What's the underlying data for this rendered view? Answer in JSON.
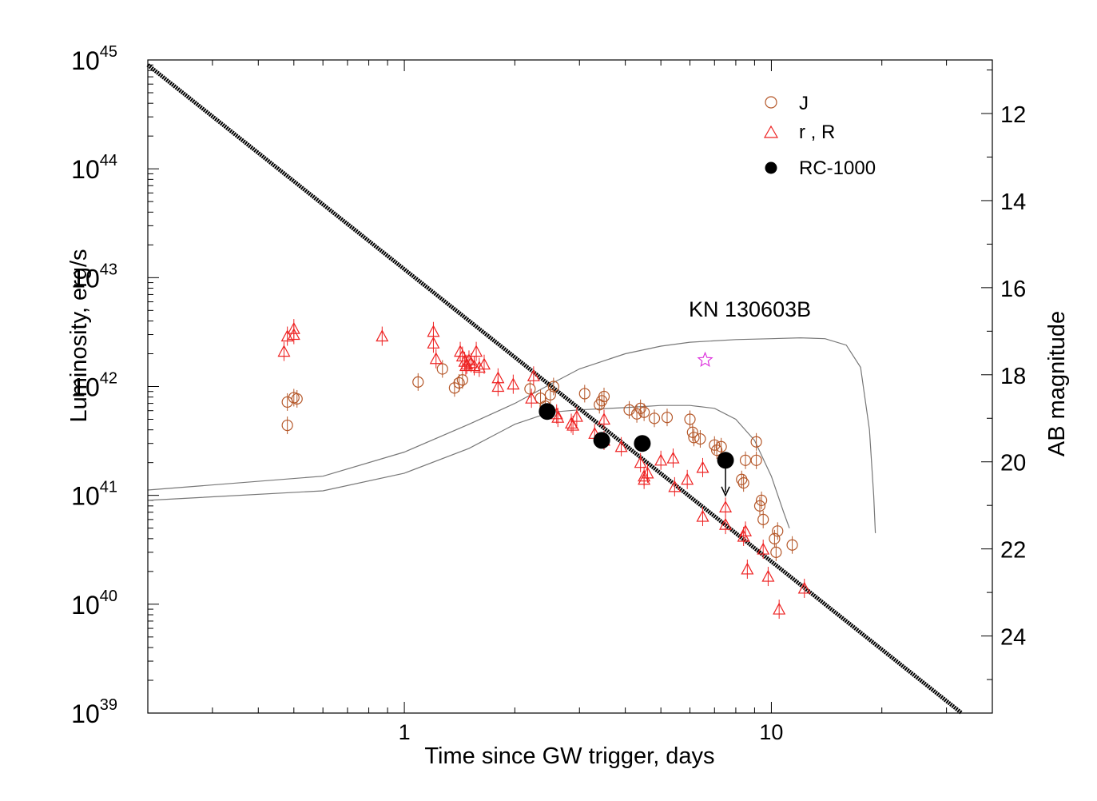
{
  "chart_data": {
    "type": "scatter",
    "xlabel": "Time since GW trigger, days",
    "ylabel": "Luminosity, erg/s",
    "y2label": "AB magnitude",
    "xscale": "log",
    "yscale": "log",
    "xlim": [
      0.2,
      40
    ],
    "ylim": [
      1e+39,
      1e+45
    ],
    "x_tick_labels": [
      {
        "value": 1,
        "label": "1"
      },
      {
        "value": 10,
        "label": "10"
      }
    ],
    "y_tick_labels": [
      {
        "value": 1e+39,
        "base": "10",
        "exp": "39"
      },
      {
        "value": 1e+40,
        "base": "10",
        "exp": "40"
      },
      {
        "value": 1e+41,
        "base": "10",
        "exp": "41"
      },
      {
        "value": 1e+42,
        "base": "10",
        "exp": "42"
      },
      {
        "value": 1e+43,
        "base": "10",
        "exp": "43"
      },
      {
        "value": 1e+44,
        "base": "10",
        "exp": "44"
      },
      {
        "value": 1e+45,
        "base": "10",
        "exp": "45"
      }
    ],
    "mag_axis": {
      "ref_lum": 1e+42,
      "ref_mag": 18.27,
      "ticks_major": [
        12,
        14,
        16,
        18,
        20,
        22,
        24
      ],
      "ticks_minor": [
        11,
        13,
        15,
        17,
        19,
        21,
        23,
        25
      ]
    },
    "annotation": "KN 130603B",
    "legend": [
      {
        "label": "J",
        "marker": "circle",
        "color": "#b5582a"
      },
      {
        "label": "r , R",
        "marker": "triangle",
        "color": "#ee2222"
      },
      {
        "label": "RC-1000",
        "marker": "filled-circle",
        "color": "#000000"
      }
    ],
    "colors": {
      "J": "#b5582a",
      "R": "#ee2222",
      "RC": "#000000",
      "star": "#dd33dd",
      "models": "#777777",
      "powerlaw": "#000000"
    },
    "series": [
      {
        "name": "J",
        "points": [
          [
            0.48,
            4.4e+41
          ],
          [
            0.48,
            7.2e+41
          ],
          [
            0.5,
            7.9e+41
          ],
          [
            0.51,
            7.7e+41
          ],
          [
            1.09,
            1.1e+42
          ],
          [
            1.27,
            1.45e+42
          ],
          [
            1.37,
            9.7e+41
          ],
          [
            1.41,
            1.08e+42
          ],
          [
            1.44,
            1.15e+42
          ],
          [
            2.2,
            9.5e+41
          ],
          [
            2.35,
            7.8e+41
          ],
          [
            2.42,
            6.6e+41
          ],
          [
            2.5,
            8.4e+41
          ],
          [
            2.55,
            1e+42
          ],
          [
            3.1,
            8.6e+41
          ],
          [
            3.4,
            6.8e+41
          ],
          [
            3.45,
            7.4e+41
          ],
          [
            3.5,
            8.1e+41
          ],
          [
            4.1,
            6.1e+41
          ],
          [
            4.3,
            5.6e+41
          ],
          [
            4.4,
            6.3e+41
          ],
          [
            4.5,
            5.8e+41
          ],
          [
            4.8,
            5.1e+41
          ],
          [
            5.2,
            5.2e+41
          ],
          [
            6.0,
            5e+41
          ],
          [
            6.1,
            3.8e+41
          ],
          [
            6.15,
            3.4e+41
          ],
          [
            6.4,
            3.3e+41
          ],
          [
            7.0,
            2.9e+41
          ],
          [
            7.1,
            2.6e+41
          ],
          [
            7.3,
            2.8e+41
          ],
          [
            8.3,
            1.4e+41
          ],
          [
            8.4,
            1.3e+41
          ],
          [
            8.5,
            2.1e+41
          ],
          [
            9.1,
            3.1e+41
          ],
          [
            9.1,
            2.1e+41
          ],
          [
            9.3,
            8e+40
          ],
          [
            9.4,
            9e+40
          ],
          [
            9.5,
            6e+40
          ],
          [
            10.2,
            4e+40
          ],
          [
            10.3,
            3e+40
          ],
          [
            10.4,
            4.7e+40
          ],
          [
            11.4,
            3.5e+40
          ]
        ]
      },
      {
        "name": "r , R",
        "points": [
          [
            0.47,
            2.1e+42
          ],
          [
            0.48,
            2.9e+42
          ],
          [
            0.5,
            3.4e+42
          ],
          [
            0.5,
            3e+42
          ],
          [
            0.87,
            2.9e+42
          ],
          [
            1.2,
            3.2e+42
          ],
          [
            1.2,
            2.5e+42
          ],
          [
            1.22,
            1.8e+42
          ],
          [
            1.42,
            2.1e+42
          ],
          [
            1.44,
            1.9e+42
          ],
          [
            1.46,
            1.7e+42
          ],
          [
            1.47,
            1.55e+42
          ],
          [
            1.48,
            1.6e+42
          ],
          [
            1.5,
            1.75e+42
          ],
          [
            1.52,
            1.65e+42
          ],
          [
            1.55,
            1.55e+42
          ],
          [
            1.57,
            2.1e+42
          ],
          [
            1.6,
            1.5e+42
          ],
          [
            1.65,
            1.6e+42
          ],
          [
            1.8,
            1.2e+42
          ],
          [
            1.8,
            1e+42
          ],
          [
            1.98,
            1.05e+42
          ],
          [
            2.22,
            7.8e+41
          ],
          [
            2.25,
            1.25e+42
          ],
          [
            2.6,
            5.6e+41
          ],
          [
            2.62,
            5.2e+41
          ],
          [
            2.85,
            4.6e+41
          ],
          [
            2.88,
            4.4e+41
          ],
          [
            2.95,
            5.3e+41
          ],
          [
            3.3,
            3.7e+41
          ],
          [
            3.5,
            3.2e+41
          ],
          [
            3.5,
            5e+41
          ],
          [
            3.9,
            2.8e+41
          ],
          [
            4.4,
            2e+41
          ],
          [
            4.5,
            1.5e+41
          ],
          [
            4.5,
            1.4e+41
          ],
          [
            4.6,
            1.6e+41
          ],
          [
            5.0,
            2.1e+41
          ],
          [
            5.4,
            2.2e+41
          ],
          [
            5.45,
            1.2e+41
          ],
          [
            5.9,
            1.4e+41
          ],
          [
            6.5,
            6.4e+40
          ],
          [
            6.5,
            1.8e+41
          ],
          [
            7.5,
            5.4e+40
          ],
          [
            7.5,
            7.8e+40
          ],
          [
            8.4,
            4.2e+40
          ],
          [
            8.5,
            4.7e+40
          ],
          [
            8.6,
            2.1e+40
          ],
          [
            9.5,
            3.2e+40
          ],
          [
            9.8,
            1.8e+40
          ],
          [
            10.5,
            9e+39
          ],
          [
            12.3,
            1.4e+40
          ]
        ]
      },
      {
        "name": "RC-1000",
        "points": [
          [
            2.45,
            5.9e+41
          ],
          [
            3.45,
            3.2e+41
          ],
          [
            4.45,
            3e+41
          ],
          [
            7.5,
            2.1e+41
          ]
        ],
        "upper_limit": [
          false,
          false,
          false,
          true
        ]
      }
    ],
    "star_point": [
      6.6,
      1.75e+42
    ],
    "powerlaw_line": [
      [
        0.2,
        9e+44
      ],
      [
        33,
        1e+39
      ]
    ],
    "model_curves": [
      [
        [
          0.2,
          1.12e+41
        ],
        [
          0.6,
          1.5e+41
        ],
        [
          1.0,
          2.5e+41
        ],
        [
          1.5,
          4.5e+41
        ],
        [
          2.0,
          7e+41
        ],
        [
          2.5,
          1.05e+42
        ],
        [
          3.0,
          1.45e+42
        ],
        [
          4.0,
          2e+42
        ],
        [
          5.0,
          2.35e+42
        ],
        [
          6.0,
          2.55e+42
        ],
        [
          8.0,
          2.7e+42
        ],
        [
          10.0,
          2.75e+42
        ],
        [
          12.0,
          2.8e+42
        ],
        [
          14.0,
          2.75e+42
        ],
        [
          16.0,
          2.4e+42
        ],
        [
          17.5,
          1.5e+42
        ],
        [
          18.5,
          4e+41
        ],
        [
          19.0,
          1e+41
        ],
        [
          19.2,
          4.5e+40
        ]
      ],
      [
        [
          0.2,
          9e+40
        ],
        [
          0.6,
          1.1e+41
        ],
        [
          1.0,
          1.6e+41
        ],
        [
          1.5,
          2.7e+41
        ],
        [
          2.0,
          4.5e+41
        ],
        [
          2.5,
          5.8e+41
        ],
        [
          3.0,
          6.1e+41
        ],
        [
          4.0,
          6.4e+41
        ],
        [
          5.0,
          6.7e+41
        ],
        [
          6.0,
          6.7e+41
        ],
        [
          7.0,
          6.3e+41
        ],
        [
          8.0,
          5e+41
        ],
        [
          9.0,
          3.2e+41
        ],
        [
          10.0,
          1.5e+41
        ],
        [
          10.8,
          7e+40
        ],
        [
          11.2,
          5e+40
        ]
      ]
    ]
  }
}
